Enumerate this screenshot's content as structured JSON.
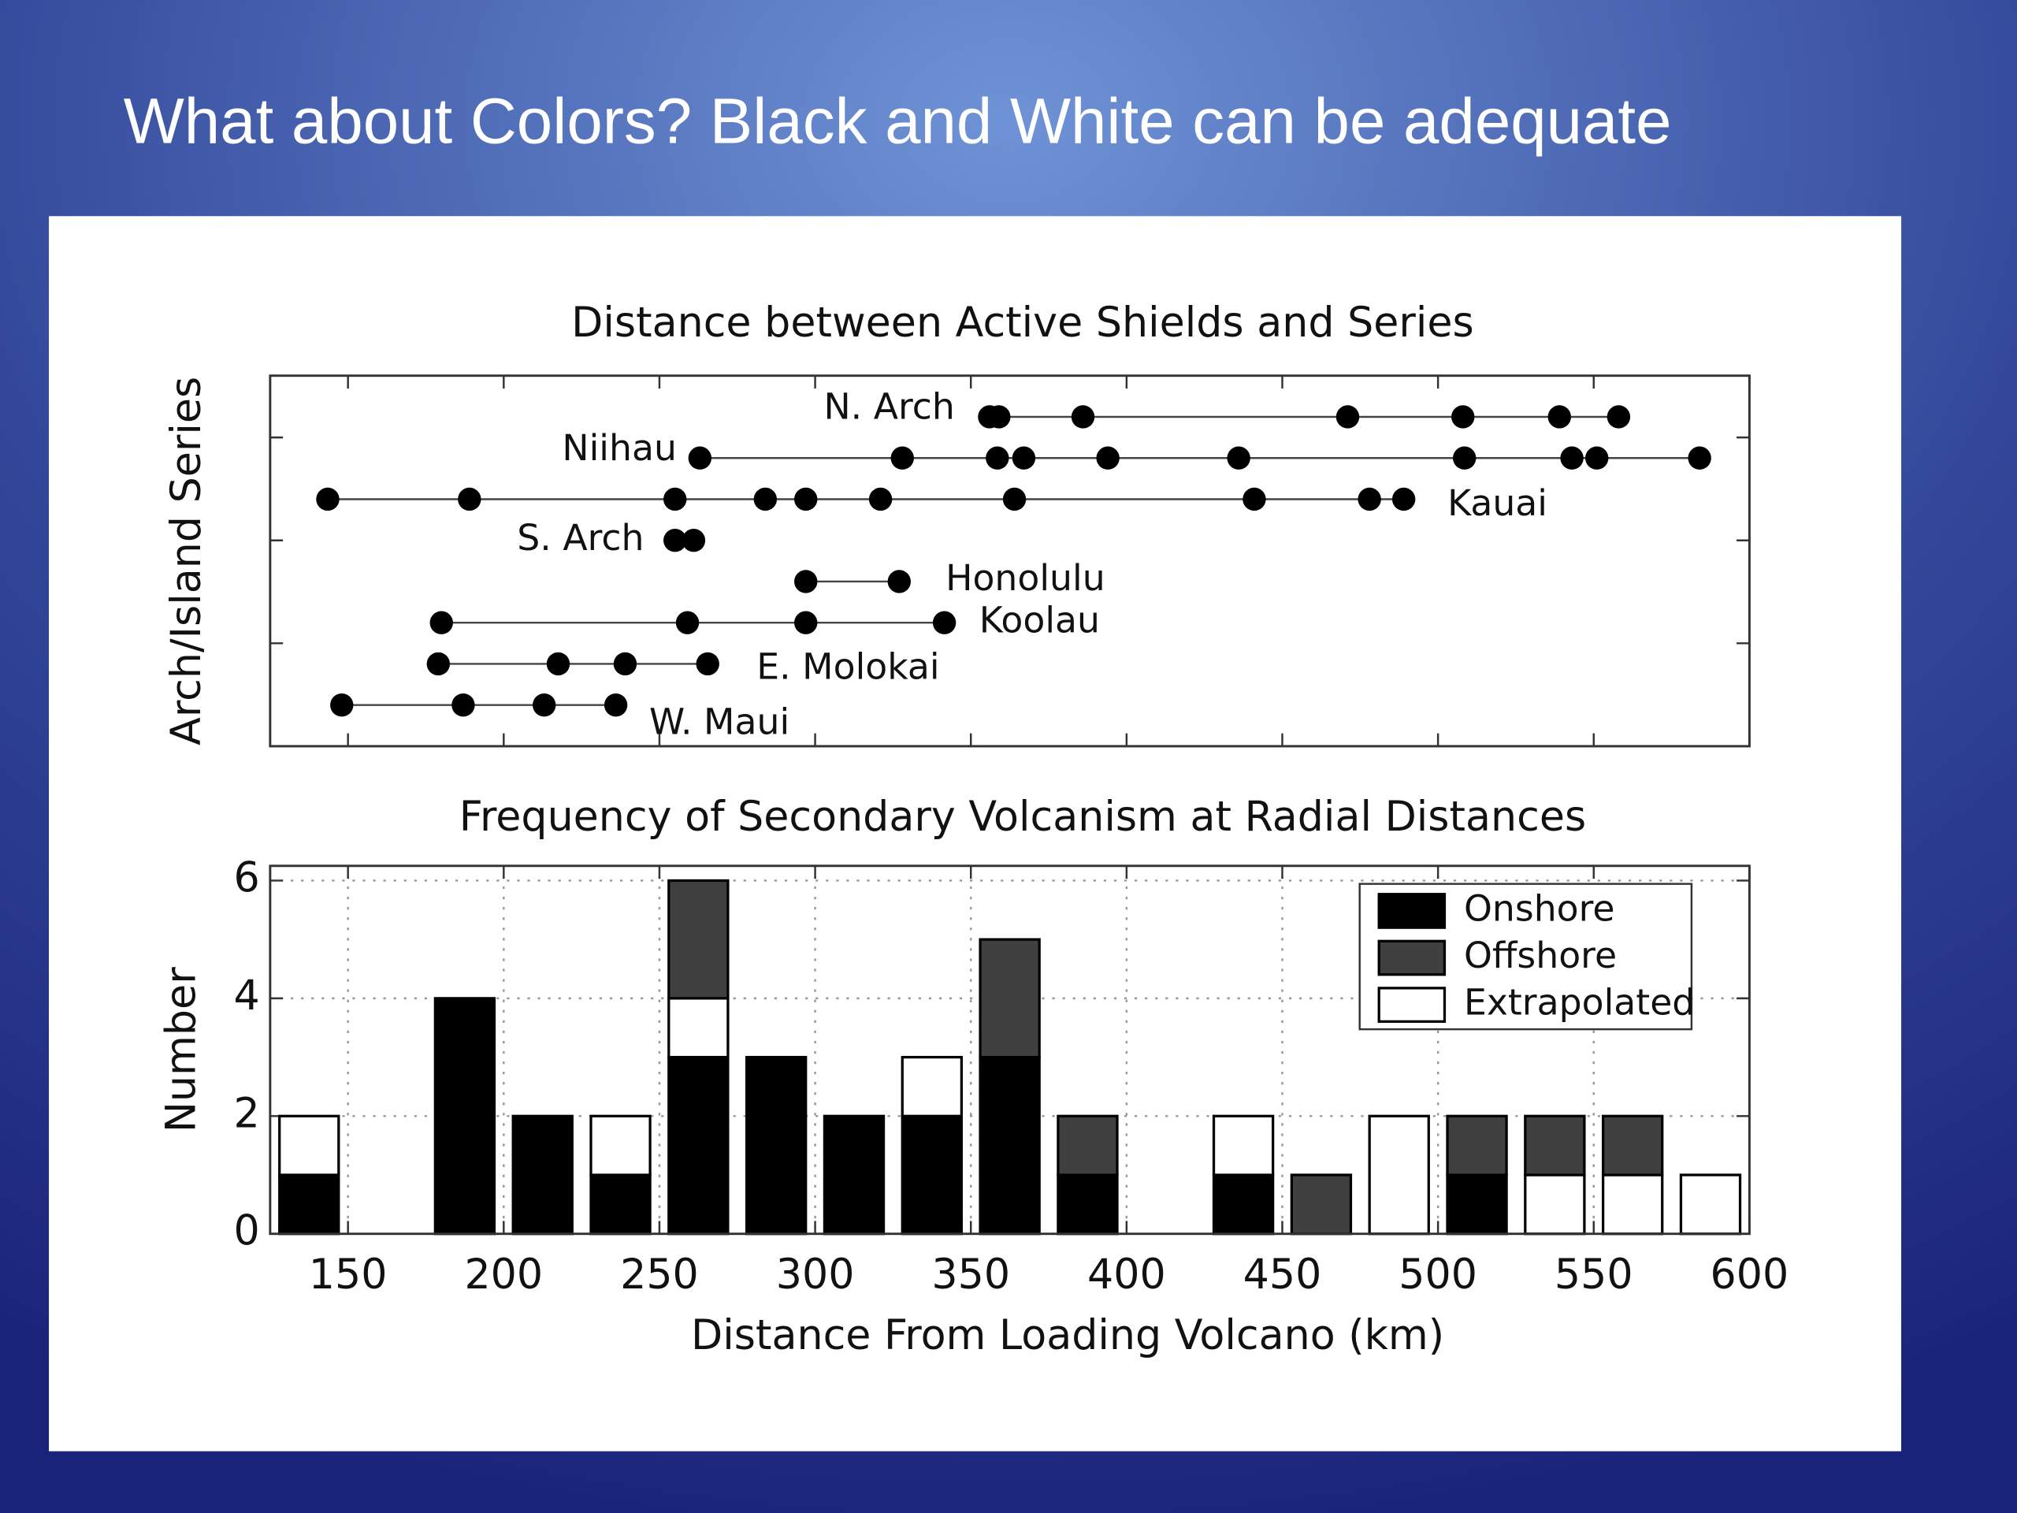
{
  "title": "What about Colors?  Black and White can be adequate",
  "chart_data": [
    {
      "type": "dotline",
      "title": "Distance between Active Shields and Series",
      "ylabel": "Arch/Island Series",
      "xlim": [
        125,
        600
      ],
      "xticks": [
        150,
        200,
        250,
        300,
        350,
        400,
        450,
        500,
        550,
        600
      ],
      "ylim": [
        0,
        9
      ],
      "yticks": [
        2.5,
        5,
        7.5
      ],
      "color": "#000000",
      "series": [
        {
          "name": "N. Arch",
          "x": [
            356,
            359,
            386,
            471,
            508,
            539,
            558
          ],
          "values": [
            8,
            8,
            8,
            8,
            8,
            8,
            8
          ]
        },
        {
          "name": "Niihau",
          "x": [
            263,
            328,
            358.5,
            367,
            394,
            436,
            508.5,
            543,
            551,
            584
          ],
          "values": [
            7,
            7,
            7,
            7,
            7,
            7,
            7,
            7,
            7,
            7
          ]
        },
        {
          "name": "Kauai",
          "x": [
            143.5,
            189,
            255,
            284,
            297,
            321,
            364,
            441,
            478,
            489
          ],
          "values": [
            6,
            6,
            6,
            6,
            6,
            6,
            6,
            6,
            6,
            6
          ]
        },
        {
          "name": "S. Arch",
          "x": [
            255,
            261
          ],
          "values": [
            5,
            5
          ]
        },
        {
          "name": "Honolulu",
          "x": [
            297,
            327
          ],
          "values": [
            4,
            4
          ]
        },
        {
          "name": "Koolau",
          "x": [
            180,
            259,
            297,
            341.5
          ],
          "values": [
            3,
            3,
            3,
            3
          ]
        },
        {
          "name": "E. Molokai",
          "x": [
            179,
            217.5,
            239,
            265.5
          ],
          "values": [
            2,
            2,
            2,
            2
          ]
        },
        {
          "name": "W. Maui",
          "x": [
            148,
            187,
            213,
            236
          ],
          "values": [
            1,
            1,
            1,
            1
          ]
        }
      ]
    },
    {
      "type": "histogram",
      "title": "Frequency of Secondary Volcanism at Radial Distances",
      "xlabel": "Distance From Loading Volcano (km)",
      "ylabel": "Number",
      "xlim": [
        125,
        600
      ],
      "xticks": [
        150,
        200,
        250,
        300,
        350,
        400,
        450,
        500,
        550,
        600
      ],
      "ylim": [
        0,
        6.25
      ],
      "yticks": [
        0,
        2,
        4,
        6
      ],
      "grid": true,
      "legend": "northeast",
      "bins": [
        125,
        150,
        175,
        200,
        225,
        250,
        275,
        300,
        325,
        350,
        375,
        400,
        425,
        450,
        475,
        500,
        525,
        550,
        575,
        600
      ],
      "series": [
        {
          "name": "Onshore",
          "color": "#000000",
          "values": [
            1,
            0,
            4,
            2,
            1,
            3,
            3,
            2,
            2,
            3,
            1,
            0,
            1,
            0,
            0,
            1,
            0,
            0,
            0
          ]
        },
        {
          "name": "Offshore",
          "color": "#404040",
          "values": [
            0,
            0,
            0,
            0,
            0,
            2,
            0,
            0,
            0,
            2,
            1,
            0,
            0,
            1,
            0,
            1,
            1,
            1,
            0
          ]
        },
        {
          "name": "Extrapolated",
          "color": "#ffffff",
          "values": [
            1,
            0,
            0,
            0,
            1,
            1,
            0,
            0,
            1,
            0,
            0,
            0,
            1,
            0,
            2,
            0,
            1,
            1,
            1
          ]
        }
      ]
    }
  ]
}
